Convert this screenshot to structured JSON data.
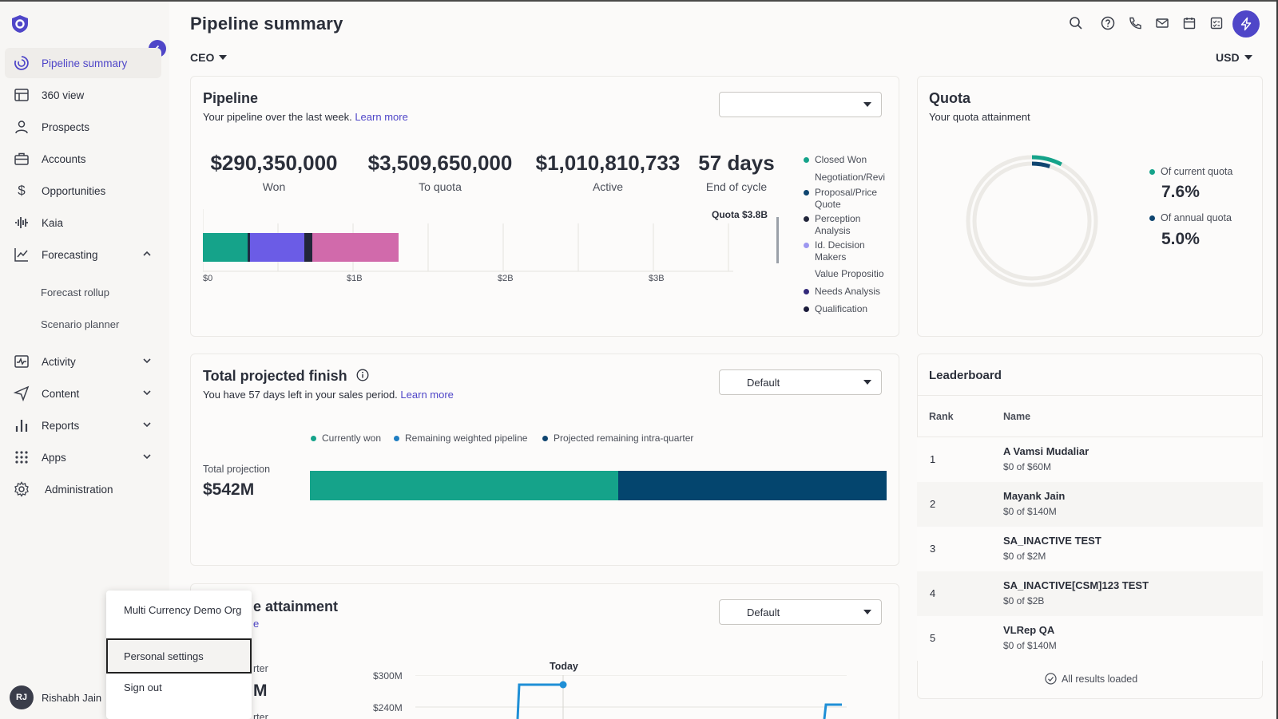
{
  "app": {
    "title": "Pipeline summary",
    "role": "CEO",
    "currency": "USD"
  },
  "sidebar": {
    "items": [
      {
        "label": "Pipeline summary"
      },
      {
        "label": "360 view"
      },
      {
        "label": "Prospects"
      },
      {
        "label": "Accounts"
      },
      {
        "label": "Opportunities"
      },
      {
        "label": "Kaia"
      },
      {
        "label": "Forecasting"
      },
      {
        "label": "Activity"
      },
      {
        "label": "Content"
      },
      {
        "label": "Reports"
      },
      {
        "label": "Apps"
      },
      {
        "label": "Administration"
      }
    ],
    "forecasting_sub": [
      "Forecast rollup",
      "Scenario planner"
    ],
    "user": {
      "initials": "RJ",
      "name": "Rishabh Jain"
    }
  },
  "popup": {
    "org": "Multi Currency Demo Org",
    "settings": "Personal settings",
    "signout": "Sign out"
  },
  "pipeline": {
    "title": "Pipeline",
    "subtitle": "Your pipeline over the last week.",
    "learn_more": "Learn more",
    "select_value": "",
    "metrics": [
      {
        "value": "$290,350,000",
        "label": "Won"
      },
      {
        "value": "$3,509,650,000",
        "label": "To quota"
      },
      {
        "value": "$1,010,810,733",
        "label": "Active"
      },
      {
        "value": "57 days",
        "label": "End of cycle"
      }
    ],
    "quota_label": "Quota $3.8B",
    "axis": [
      "$0",
      "$1B",
      "$2B",
      "$3B"
    ],
    "legend": [
      {
        "label": "Closed Won",
        "color": "#15a38a"
      },
      {
        "label": "Negotiation/Revi",
        "color": "#1f7ec2"
      },
      {
        "label": "Proposal/Price Quote",
        "color": "#0f4570"
      },
      {
        "label": "Perception Analysis",
        "color": "#22263a"
      },
      {
        "label": "Id. Decision Makers",
        "color": "#9d97f0"
      },
      {
        "label": "Value Propositio",
        "color": "#6b5ce6"
      },
      {
        "label": "Needs Analysis",
        "color": "#332a7a"
      },
      {
        "label": "Qualification",
        "color": "#1b1b3a"
      }
    ]
  },
  "quota": {
    "title": "Quota",
    "subtitle": "Your quota attainment",
    "current_label": "Of current quota",
    "current_value": "7.6%",
    "annual_label": "Of annual quota",
    "annual_value": "5.0%",
    "current_fraction": 0.076,
    "annual_fraction": 0.05,
    "colors": {
      "current": "#15a38a",
      "annual": "#0f4570"
    }
  },
  "projected": {
    "title": "Total projected finish",
    "subtitle": "You have 57 days left in your sales period.",
    "learn_more": "Learn more",
    "select_value": "Default",
    "legend": [
      {
        "label": "Currently won",
        "color": "#15a38a"
      },
      {
        "label": "Remaining weighted pipeline",
        "color": "#1f7ec2"
      },
      {
        "label": "Projected remaining intra-quarter",
        "color": "#0f4570"
      }
    ],
    "total_label": "Total projection",
    "total_value": "$542M",
    "segments": [
      {
        "name": "Currently won",
        "fraction": 0.535,
        "color": "#15a38a"
      },
      {
        "name": "Projected remaining intra-quarter",
        "fraction": 0.465,
        "color": "#04456e"
      }
    ]
  },
  "attainment": {
    "title_visible": "e attainment",
    "link_fragment": "e",
    "select_value": "Default",
    "label_partial_1": "rter",
    "label_partial_2": "M",
    "label_partial_3": "rter",
    "today_label": "Today",
    "y_ticks": [
      "$300M",
      "$240M"
    ]
  },
  "leaderboard": {
    "title": "Leaderboard",
    "col_rank": "Rank",
    "col_name": "Name",
    "rows": [
      {
        "rank": "1",
        "name": "A Vamsi Mudaliar",
        "quota": "$0 of $60M"
      },
      {
        "rank": "2",
        "name": "Mayank Jain",
        "quota": "$0 of $140M"
      },
      {
        "rank": "3",
        "name": "SA_INACTIVE TEST",
        "quota": "$0 of $2M"
      },
      {
        "rank": "4",
        "name": "SA_INACTIVE[CSM]123 TEST",
        "quota": "$0 of $2B"
      },
      {
        "rank": "5",
        "name": "VLRep QA",
        "quota": "$0 of $140M"
      }
    ],
    "footer": "All results loaded"
  }
}
